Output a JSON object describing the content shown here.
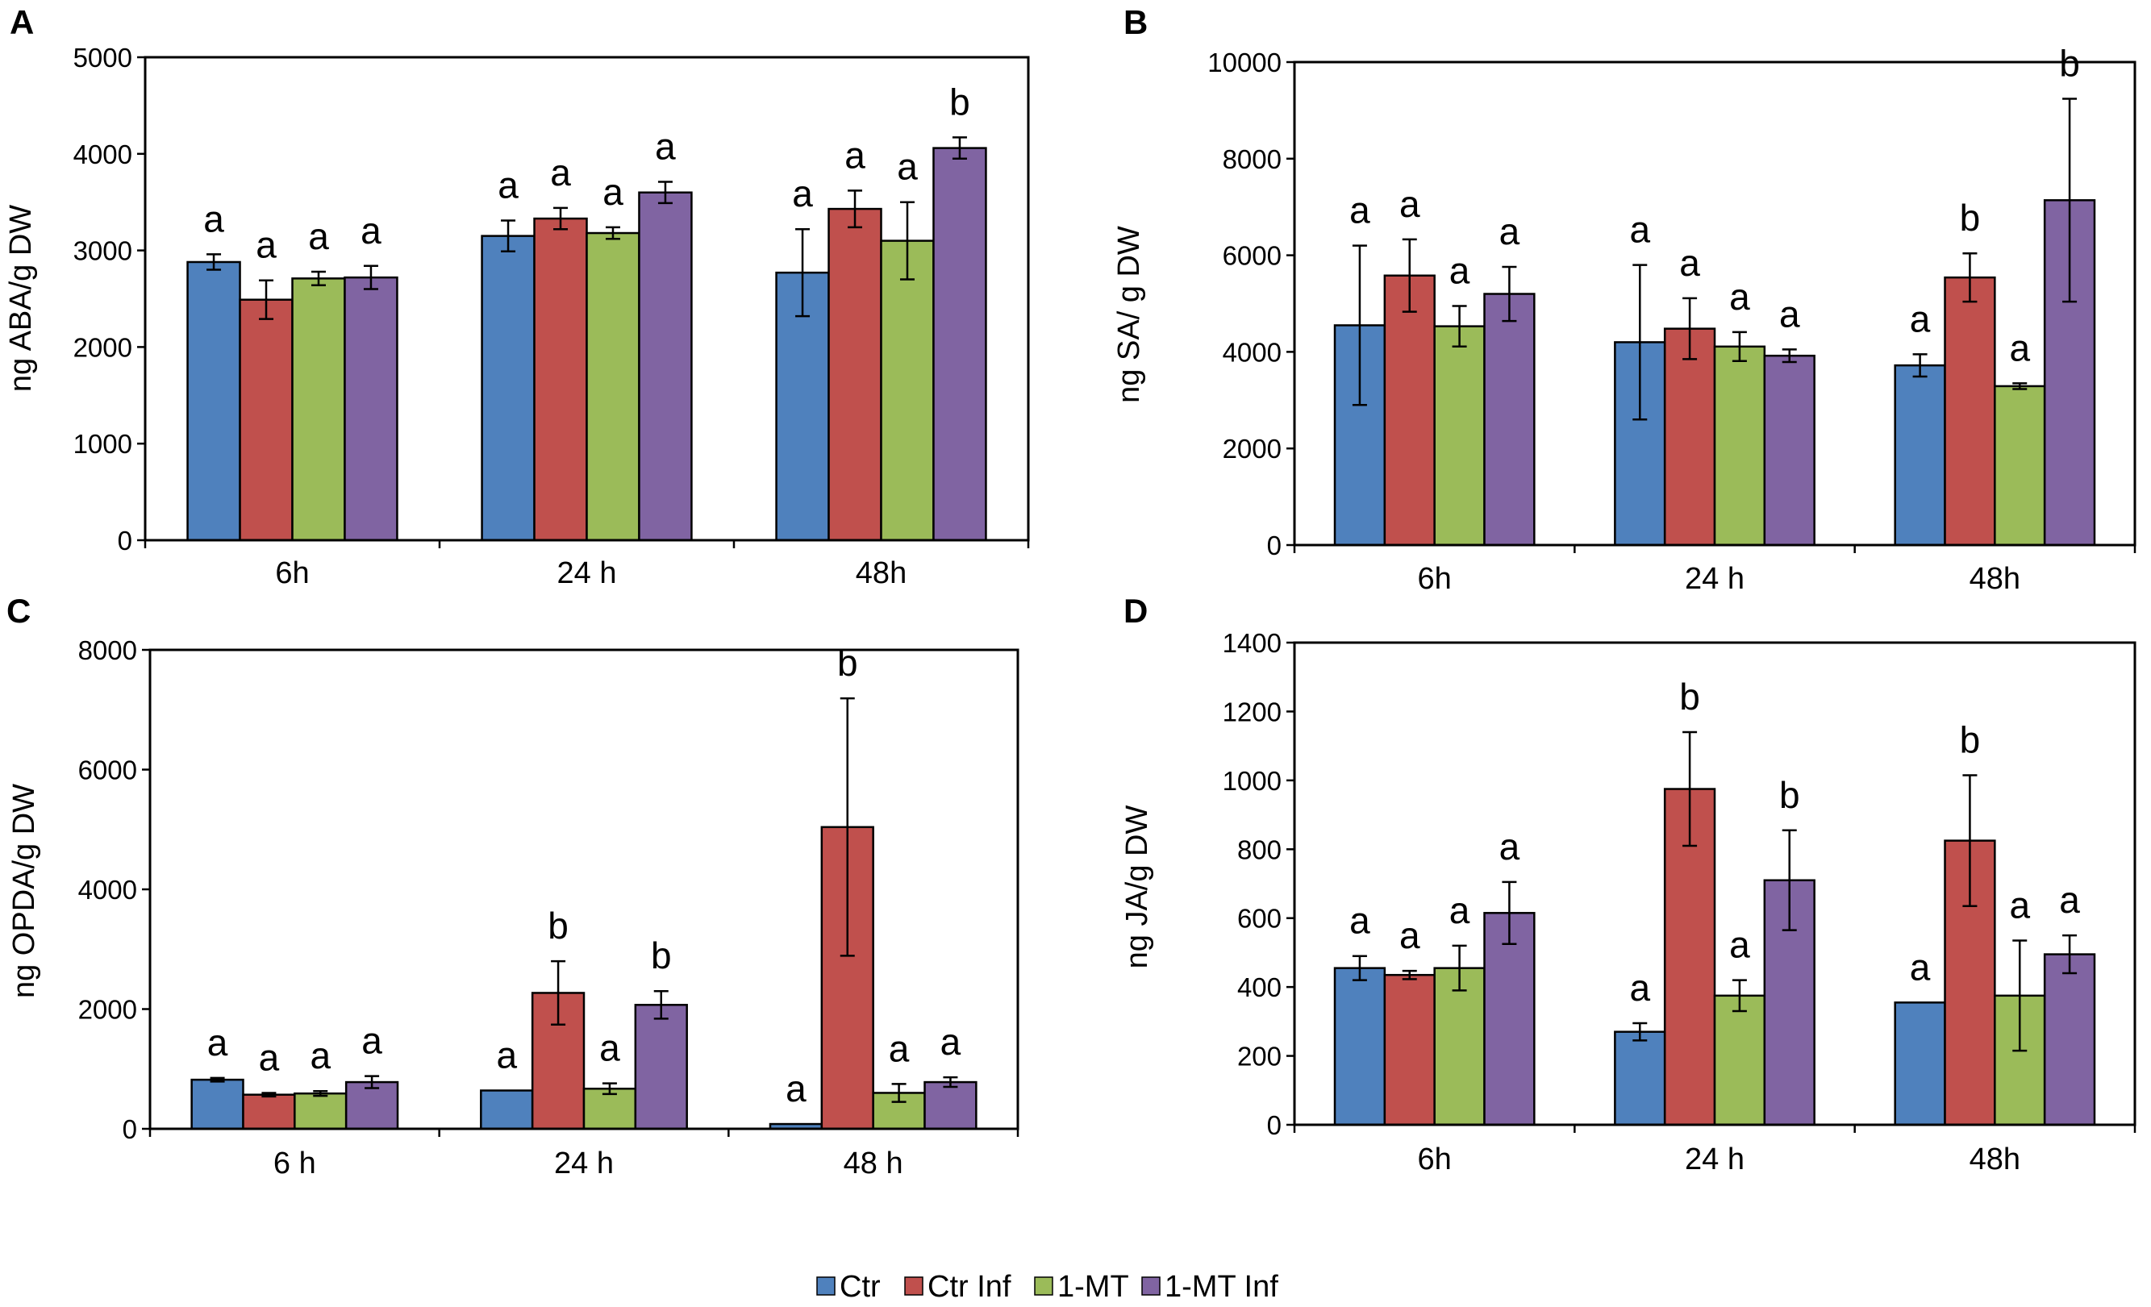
{
  "legend": {
    "items": [
      {
        "label": "Ctr",
        "color": "#4f81bd"
      },
      {
        "label": "Ctr Inf",
        "color": "#c0504d"
      },
      {
        "label": "1-MT",
        "color": "#9bbb59"
      },
      {
        "label": "1-MT Inf",
        "color": "#8064a2"
      }
    ]
  },
  "chart_data": [
    {
      "id": "A",
      "panel_label": "A",
      "type": "bar",
      "ylabel": "ng ABA/g DW",
      "ylim": [
        0,
        5000
      ],
      "yticks": [
        0,
        1000,
        2000,
        3000,
        4000,
        5000
      ],
      "categories": [
        "6h",
        "24 h",
        "48h"
      ],
      "series": [
        {
          "name": "Ctr",
          "values": [
            2880,
            3150,
            2770
          ],
          "errors": [
            80,
            160,
            450
          ],
          "sig": [
            "a",
            "a",
            "a"
          ]
        },
        {
          "name": "Ctr Inf",
          "values": [
            2490,
            3330,
            3430
          ],
          "errors": [
            200,
            110,
            190
          ],
          "sig": [
            "a",
            "a",
            "a"
          ]
        },
        {
          "name": "1-MT",
          "values": [
            2710,
            3180,
            3100
          ],
          "errors": [
            70,
            60,
            400
          ],
          "sig": [
            "a",
            "a",
            "a"
          ]
        },
        {
          "name": "1-MT Inf",
          "values": [
            2720,
            3600,
            4060
          ],
          "errors": [
            120,
            110,
            110
          ],
          "sig": [
            "a",
            "a",
            "b"
          ]
        }
      ]
    },
    {
      "id": "B",
      "panel_label": "B",
      "type": "bar",
      "ylabel": "ng SA/ g DW",
      "ylim": [
        0,
        10000
      ],
      "yticks": [
        0,
        2000,
        4000,
        6000,
        8000,
        10000
      ],
      "categories": [
        "6h",
        "24 h",
        "48h"
      ],
      "series": [
        {
          "name": "Ctr",
          "values": [
            4550,
            4200,
            3720
          ],
          "errors": [
            1650,
            1600,
            230
          ],
          "sig": [
            "a",
            "a",
            "a"
          ]
        },
        {
          "name": "Ctr Inf",
          "values": [
            5580,
            4480,
            5540
          ],
          "errors": [
            750,
            630,
            500
          ],
          "sig": [
            "a",
            "a",
            "b"
          ]
        },
        {
          "name": "1-MT",
          "values": [
            4530,
            4110,
            3290
          ],
          "errors": [
            420,
            300,
            60
          ],
          "sig": [
            "a",
            "a",
            "a"
          ]
        },
        {
          "name": "1-MT Inf",
          "values": [
            5200,
            3920,
            7140
          ],
          "errors": [
            560,
            130,
            2100
          ],
          "sig": [
            "a",
            "a",
            "b"
          ]
        }
      ]
    },
    {
      "id": "C",
      "panel_label": "C",
      "type": "bar",
      "ylabel": "ng OPDA/g DW",
      "ylim": [
        0,
        8000
      ],
      "yticks": [
        0,
        2000,
        4000,
        6000,
        8000
      ],
      "categories": [
        "6 h",
        "24 h",
        "48 h"
      ],
      "series": [
        {
          "name": "Ctr",
          "values": [
            820,
            640,
            80
          ],
          "errors": [
            30,
            0,
            0
          ],
          "sig": [
            "a",
            "a",
            "a"
          ]
        },
        {
          "name": "Ctr Inf",
          "values": [
            570,
            2270,
            5040
          ],
          "errors": [
            30,
            530,
            2150
          ],
          "sig": [
            "a",
            "b",
            "b"
          ]
        },
        {
          "name": "1-MT",
          "values": [
            590,
            670,
            600
          ],
          "errors": [
            40,
            90,
            150
          ],
          "sig": [
            "a",
            "a",
            "a"
          ]
        },
        {
          "name": "1-MT Inf",
          "values": [
            780,
            2070,
            780
          ],
          "errors": [
            100,
            230,
            80
          ],
          "sig": [
            "a",
            "b",
            "a"
          ]
        }
      ]
    },
    {
      "id": "D",
      "panel_label": "D",
      "type": "bar",
      "ylabel": "ng JA/g DW",
      "ylim": [
        0,
        1400
      ],
      "yticks": [
        0,
        200,
        400,
        600,
        800,
        1000,
        1200,
        1400
      ],
      "categories": [
        "6h",
        "24 h",
        "48h"
      ],
      "series": [
        {
          "name": "Ctr",
          "values": [
            455,
            270,
            355
          ],
          "errors": [
            35,
            25,
            0
          ],
          "sig": [
            "a",
            "a",
            "a"
          ]
        },
        {
          "name": "Ctr Inf",
          "values": [
            435,
            975,
            825
          ],
          "errors": [
            12,
            165,
            190
          ],
          "sig": [
            "a",
            "b",
            "b"
          ]
        },
        {
          "name": "1-MT",
          "values": [
            455,
            375,
            375
          ],
          "errors": [
            65,
            45,
            160
          ],
          "sig": [
            "a",
            "a",
            "a"
          ]
        },
        {
          "name": "1-MT Inf",
          "values": [
            615,
            710,
            495
          ],
          "errors": [
            90,
            145,
            55
          ],
          "sig": [
            "a",
            "b",
            "a"
          ]
        }
      ]
    }
  ]
}
